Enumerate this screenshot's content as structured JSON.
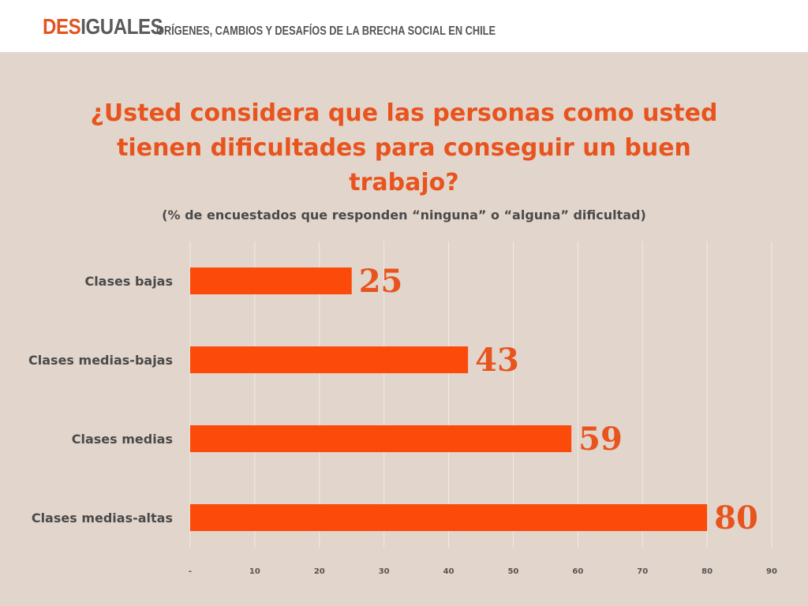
{
  "header": {
    "logo_part1": "DES",
    "logo_part2": "IGUALES",
    "tagline": "ORÍGENES, CAMBIOS Y DESAFÍOS DE LA BRECHA SOCIAL EN CHILE"
  },
  "colors": {
    "accent": "#e8541e",
    "bar": "#fb4a0a",
    "background": "#e2d5cb",
    "text": "#4a4a4a"
  },
  "chart_data": {
    "type": "bar",
    "orientation": "horizontal",
    "title": "¿Usted considera que las personas como usted tienen dificultades para conseguir un buen trabajo?",
    "subtitle": "(% de encuestados que responden “ninguna” o “alguna” dificultad)",
    "categories": [
      "Clases bajas",
      "Clases medias-bajas",
      "Clases medias",
      "Clases medias-altas"
    ],
    "values": [
      25,
      43,
      59,
      80
    ],
    "data_labels": [
      "25",
      "43",
      "59",
      "80"
    ],
    "xlim": [
      0,
      90
    ],
    "x_ticks": [
      0,
      10,
      20,
      30,
      40,
      50,
      60,
      70,
      80,
      90
    ],
    "x_tick_labels": [
      "-",
      "10",
      "20",
      "30",
      "40",
      "50",
      "60",
      "70",
      "80",
      "90"
    ],
    "grid": true,
    "legend": "none"
  }
}
